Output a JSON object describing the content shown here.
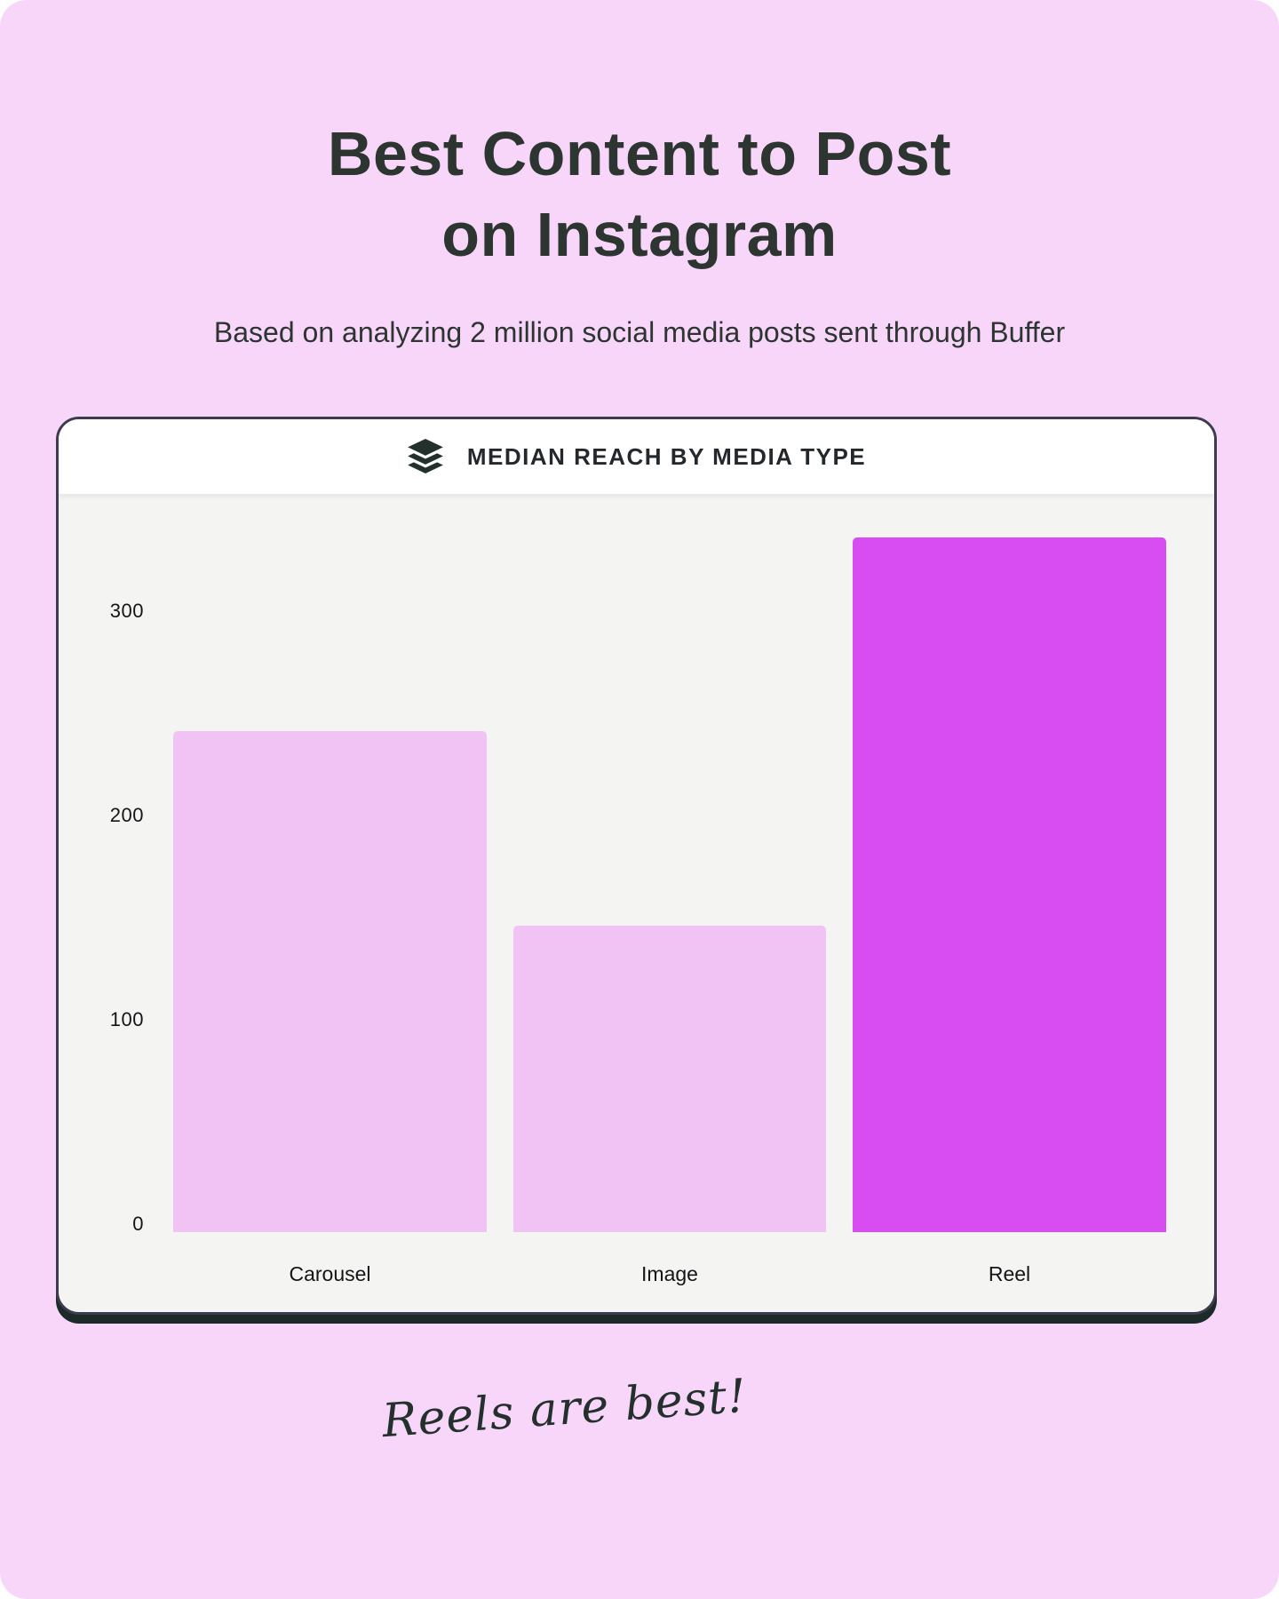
{
  "page": {
    "background_color": "#f8d6fa",
    "title_line1": "Best Content to Post",
    "title_line2": "on Instagram",
    "subtitle": "Based on analyzing 2 million social media posts sent through Buffer",
    "annotation": "Reels are best!"
  },
  "card": {
    "header": {
      "logo_icon": "buffer-layers-icon",
      "title": "MEDIAN REACH BY MEDIA TYPE"
    }
  },
  "chart_data": {
    "type": "bar",
    "title": "MEDIAN REACH BY MEDIA TYPE",
    "categories": [
      "Carousel",
      "Image",
      "Reel"
    ],
    "values": [
      245,
      150,
      340
    ],
    "yticks": [
      0,
      100,
      200,
      300
    ],
    "ylim": [
      0,
      360
    ],
    "xlabel": "",
    "ylabel": "",
    "grid": false,
    "legend": false,
    "bar_colors": [
      "#f1c3f4",
      "#f1c3f4",
      "#d84df2"
    ],
    "plot_bg": "#f4f4f2",
    "highlight_color": "#d84df2",
    "muted_bar_color": "#f1c3f4"
  }
}
